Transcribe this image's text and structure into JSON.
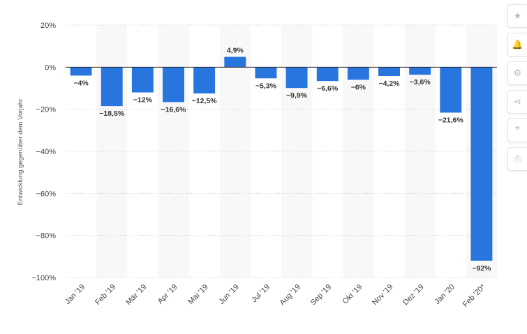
{
  "chart_data": {
    "type": "bar",
    "ylabel": "Entwicklung gegenüber dem Vorjahr",
    "ylim": [
      -100,
      20
    ],
    "yticks": [
      20,
      0,
      -20,
      -40,
      -60,
      -80,
      -100
    ],
    "ytick_labels": [
      "20%",
      "0%",
      "−20%",
      "−40%",
      "−60%",
      "−80%",
      "−100%"
    ],
    "categories": [
      "Jan '19",
      "Feb '19",
      "Mär '19",
      "Apr '19",
      "Mai '19",
      "Jun '19",
      "Jul '19",
      "Aug '19",
      "Sep '19",
      "Okt '19",
      "Nov '19",
      "Dez '19",
      "Jan '20",
      "Feb '20*"
    ],
    "values": [
      -4,
      -18.5,
      -12,
      -16.6,
      -12.5,
      4.9,
      -5.3,
      -9.9,
      -6.6,
      -6,
      -4.2,
      -3.6,
      -21.6,
      -92
    ],
    "value_labels": [
      "−4%",
      "−18,5%",
      "−12%",
      "−16,6%",
      "−12,5%",
      "4,9%",
      "−5,3%",
      "−9,9%",
      "−6,6%",
      "−6%",
      "−4,2%",
      "−3,6%",
      "−21,6%",
      "−92%"
    ],
    "bar_color": "#2876dd",
    "band_color": "#f8f8f8",
    "grid": true,
    "legend": false
  },
  "sidebar": {
    "items": [
      {
        "name": "star-icon",
        "glyph": "★"
      },
      {
        "name": "bell-icon",
        "glyph": "🔔"
      },
      {
        "name": "gear-icon",
        "glyph": "⚙"
      },
      {
        "name": "share-icon",
        "glyph": "⋖"
      },
      {
        "name": "quote-icon",
        "glyph": "❞"
      },
      {
        "name": "print-icon",
        "glyph": "⎙"
      }
    ]
  }
}
